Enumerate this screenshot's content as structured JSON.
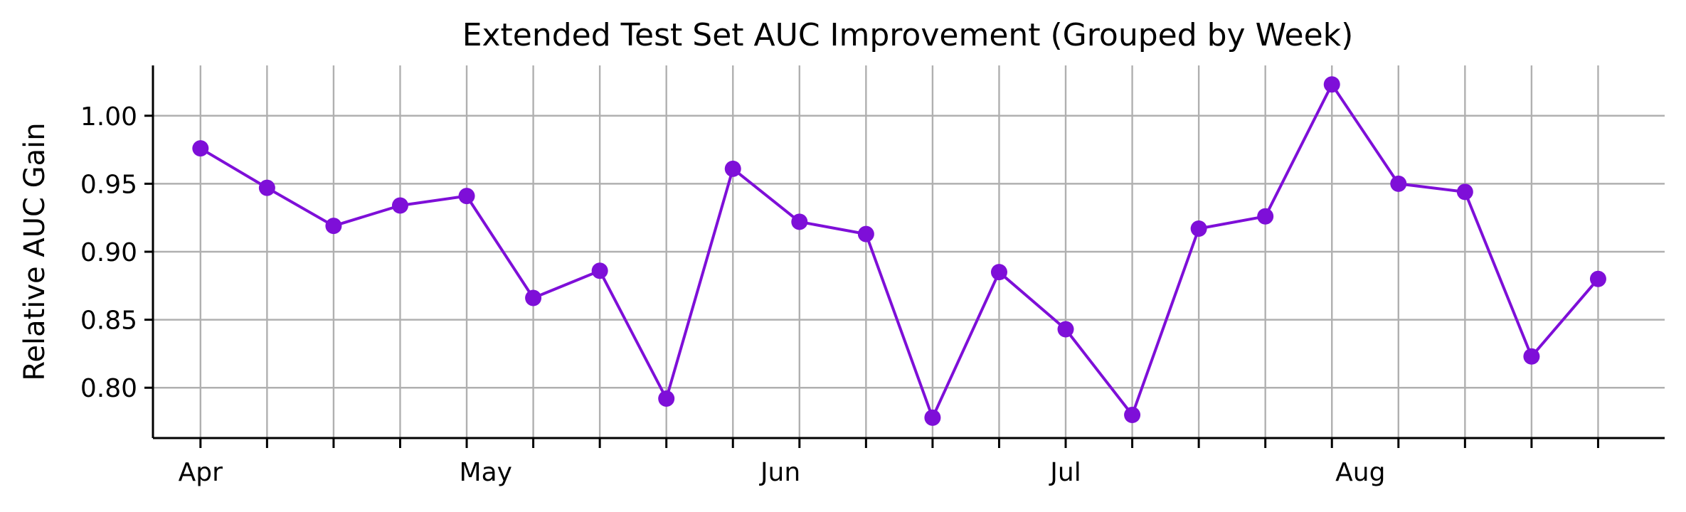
{
  "chart_data": {
    "type": "line",
    "title": "Extended Test Set AUC Improvement (Grouped by Week)",
    "xlabel": "",
    "ylabel": "Relative AUC Gain",
    "x": [
      "2024-04-01",
      "2024-04-08",
      "2024-04-15",
      "2024-04-22",
      "2024-04-29",
      "2024-05-06",
      "2024-05-13",
      "2024-05-20",
      "2024-05-27",
      "2024-06-03",
      "2024-06-10",
      "2024-06-17",
      "2024-06-24",
      "2024-07-01",
      "2024-07-08",
      "2024-07-15",
      "2024-07-22",
      "2024-07-29",
      "2024-08-05",
      "2024-08-12",
      "2024-08-19",
      "2024-08-26"
    ],
    "series": [
      {
        "values": [
          0.976,
          0.947,
          0.919,
          0.934,
          0.941,
          0.866,
          0.886,
          0.792,
          0.961,
          0.922,
          0.913,
          0.778,
          0.885,
          0.843,
          0.78,
          0.917,
          0.926,
          1.023,
          0.95,
          0.944,
          0.823,
          0.88
        ],
        "color": "#7e0fd8"
      }
    ],
    "x_tick_labels": [
      {
        "label": "Apr",
        "date": "2024-04-01"
      },
      {
        "label": "May",
        "date": "2024-05-01"
      },
      {
        "label": "Jun",
        "date": "2024-06-01"
      },
      {
        "label": "Jul",
        "date": "2024-07-01"
      },
      {
        "label": "Aug",
        "date": "2024-08-01"
      }
    ],
    "y_ticks": [
      0.8,
      0.85,
      0.9,
      0.95,
      1.0
    ],
    "y_tick_labels": [
      "0.80",
      "0.85",
      "0.90",
      "0.95",
      "1.00"
    ],
    "ylim": [
      0.763,
      1.037
    ],
    "xlim": [
      "2024-03-27",
      "2024-09-02"
    ],
    "grid": true,
    "legend": "none",
    "spines": "left-bottom"
  }
}
